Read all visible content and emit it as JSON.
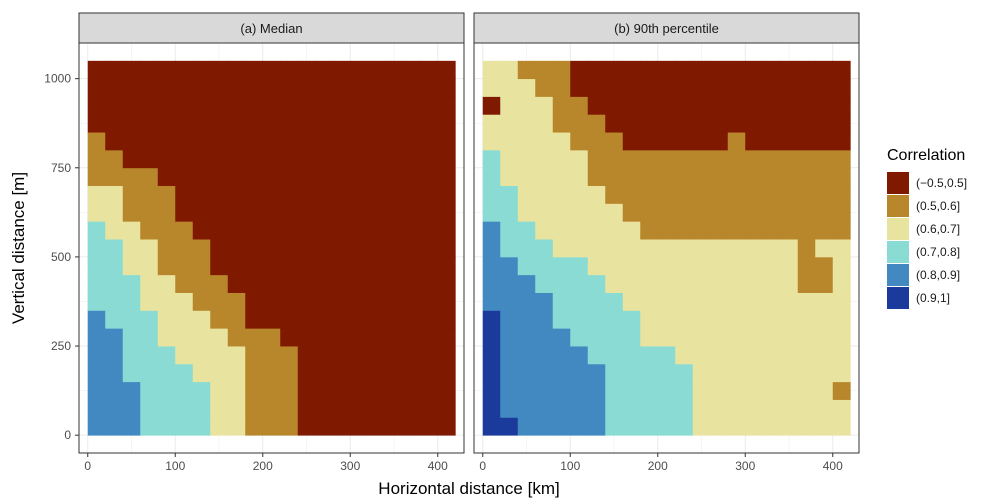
{
  "chart_data": {
    "type": "heatmap",
    "xlabel": "Horizontal distance [km]",
    "ylabel": "Vertical distance [m]",
    "xlim": [
      -10,
      430
    ],
    "ylim": [
      -50,
      1100
    ],
    "x_ticks": [
      0,
      100,
      200,
      300,
      400
    ],
    "y_ticks": [
      0,
      250,
      500,
      750,
      1000
    ],
    "grid": true,
    "legend_position": "right",
    "cell_size": {
      "x_km": 20,
      "y_m": 50
    },
    "x_centers": [
      10,
      30,
      50,
      70,
      90,
      110,
      130,
      150,
      170,
      190,
      210,
      230,
      250,
      270,
      290,
      310,
      330,
      350,
      370,
      390,
      410
    ],
    "y_centers": [
      25,
      75,
      125,
      175,
      225,
      275,
      325,
      375,
      425,
      475,
      525,
      575,
      625,
      675,
      725,
      775,
      825,
      875,
      925,
      975,
      1025
    ],
    "legend": {
      "title": "Correlation",
      "categories": [
        "(−0.5,0.5]",
        "(0.5,0.6]",
        "(0.6,0.7]",
        "(0.7,0.8]",
        "(0.8,0.9]",
        "(0.9,1]"
      ],
      "colors": [
        "#7f1900",
        "#b8862b",
        "#e8e4a0",
        "#89dbd3",
        "#4289c2",
        "#1a3a9c"
      ]
    },
    "panels": [
      {
        "title": "(a) Median",
        "class_grid_bottom_to_top": [
          "444333322111000000000",
          "444333322111000000000",
          "444333322111000000000",
          "443333222111000000000",
          "443332222111000000000",
          "443322221110000000000",
          "433322211000000000000",
          "333222111000000000000",
          "333221110000000000000",
          "332211100000000000000",
          "332211100000000000000",
          "322111000000000000000",
          "221110000000000000000",
          "221110000000000000000",
          "111100000000000000000",
          "110000000000000000000",
          "100000000000000000000",
          "000000000000000000000",
          "000000000000000000000",
          "000000000000000000000",
          "000000000000000000000"
        ]
      },
      {
        "title": "(b) 90th percentile",
        "class_grid_bottom_to_top": [
          "554444433333222222222",
          "544444433333222222222",
          "544444433333222222221",
          "544444433333222222222",
          "544444333332222222222",
          "544443333222222222222",
          "544433333222222222222",
          "444433332222222222222",
          "444333322222222222112",
          "443333222222222222112",
          "433322222222222222122",
          "433222222111111111111",
          "332222221111111111111",
          "332222211111111111111",
          "322222111111111111111",
          "322222111111111111111",
          "222221110000001000000",
          "222211100000000000000",
          "022211000000000000000",
          "222110000000000000000",
          "221110000000000000000"
        ]
      }
    ]
  }
}
